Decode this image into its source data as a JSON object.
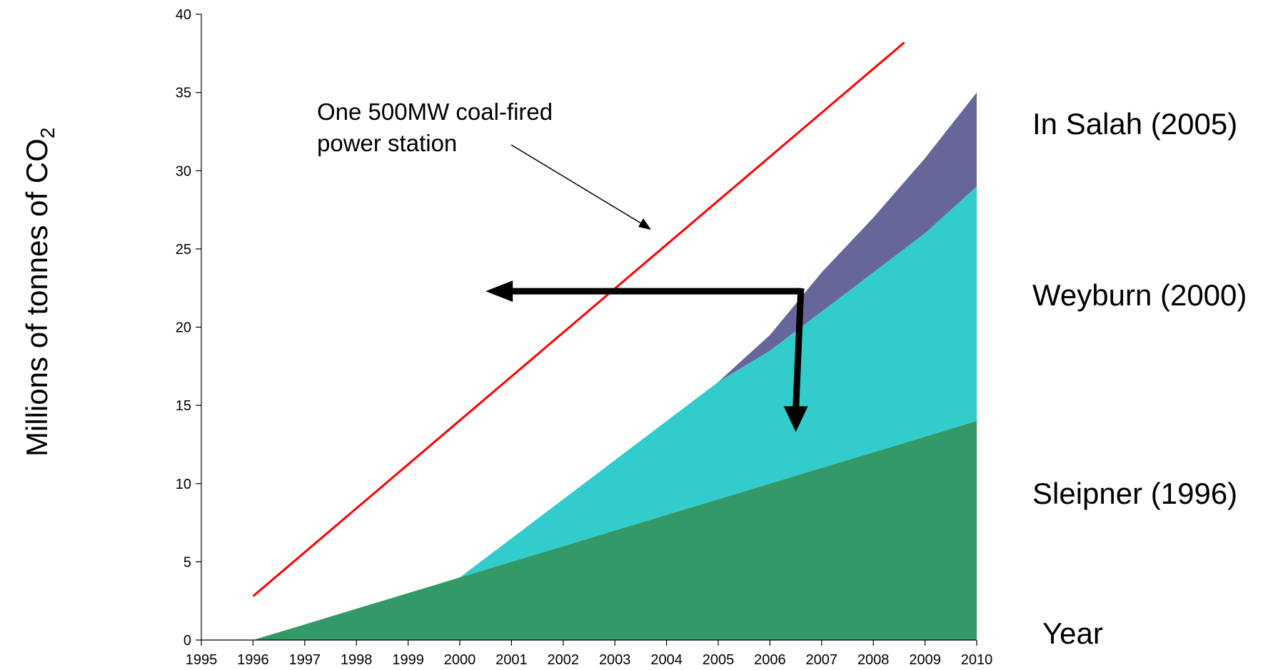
{
  "chart_data": {
    "type": "area",
    "stacked": true,
    "x": [
      1995,
      1996,
      1997,
      1998,
      1999,
      2000,
      2001,
      2002,
      2003,
      2004,
      2005,
      2006,
      2007,
      2008,
      2009,
      2010
    ],
    "xlim": [
      1995,
      2010
    ],
    "ylim": [
      0,
      40
    ],
    "yticks": [
      0,
      5,
      10,
      15,
      20,
      25,
      30,
      35,
      40
    ],
    "ylabel_main": "Millions of tonnes of CO",
    "ylabel_sub": "2",
    "xlabel": "Year",
    "series": [
      {
        "name": "Sleipner (1996)",
        "color": "#339966",
        "values": [
          0,
          0,
          1,
          2,
          3,
          4,
          5,
          6,
          7,
          8,
          9,
          10,
          11,
          12,
          13,
          14
        ]
      },
      {
        "name": "Weyburn (2000)",
        "color": "#33CCCC",
        "values": [
          0,
          0,
          0,
          0,
          0,
          0,
          1.5,
          3,
          4.5,
          6,
          7.5,
          8.5,
          10,
          11.5,
          13,
          15
        ]
      },
      {
        "name": "In Salah (2005)",
        "color": "#666699",
        "values": [
          0,
          0,
          0,
          0,
          0,
          0,
          0,
          0,
          0,
          0,
          0,
          1,
          2.5,
          3.5,
          4.8,
          6
        ]
      }
    ],
    "reference_line": {
      "label_line1": "One 500MW coal-fired",
      "label_line2": "power station",
      "color": "#FF0000",
      "start": [
        1996,
        2.8
      ],
      "end": [
        2008.6,
        38.2
      ]
    },
    "annotations": {
      "horizontal_arrow": {
        "from": [
          2006.6,
          22.3
        ],
        "to": [
          2000.5,
          22.3
        ]
      },
      "vertical_arrow": {
        "from": [
          2006.6,
          22.3
        ],
        "to": [
          2006.5,
          13.3
        ]
      }
    }
  }
}
